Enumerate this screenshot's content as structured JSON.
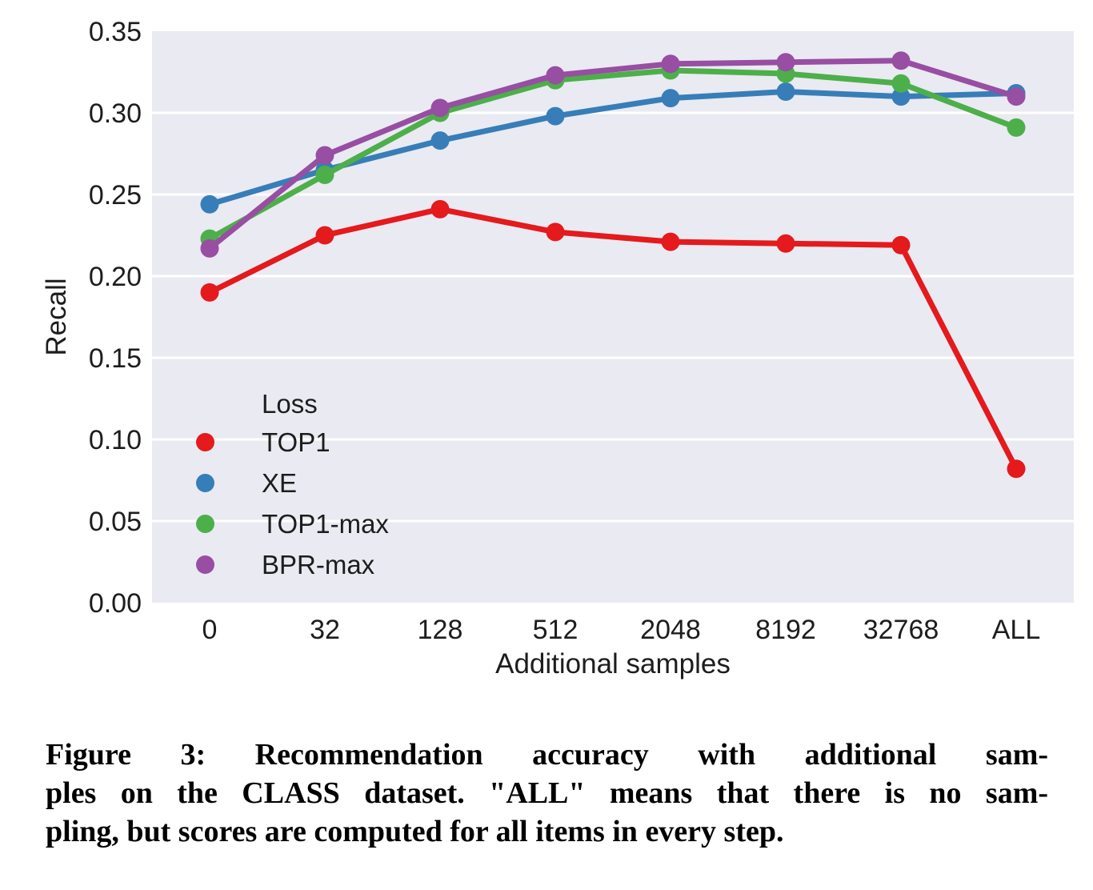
{
  "figure": {
    "caption_lines": [
      "Figure 3: Recommendation accuracy with additional sam-",
      "ples on the CLASS dataset. \"ALL\" means that there is no sam-",
      "pling, but scores are computed for all items in every step."
    ]
  },
  "chart_data": {
    "type": "line",
    "title": "",
    "xlabel": "Additional samples",
    "ylabel": "Recall",
    "legend_title": "Loss",
    "legend_position": "lower-left inside plot area",
    "grid": "horizontal white gridlines on light lavender plot background, no vertical gridlines",
    "plot_bg": "#eaeaf2",
    "gridline_color": "#ffffff",
    "text_color": "#1d1d1d",
    "categories": [
      "0",
      "32",
      "128",
      "512",
      "2048",
      "8192",
      "32768",
      "ALL"
    ],
    "ylim": [
      0.0,
      0.35
    ],
    "yticks": [
      0.0,
      0.05,
      0.1,
      0.15,
      0.2,
      0.25,
      0.3,
      0.35
    ],
    "series": [
      {
        "name": "TOP1",
        "color": "#e41a1c",
        "values": [
          0.19,
          0.225,
          0.241,
          0.227,
          0.221,
          0.22,
          0.219,
          0.082
        ]
      },
      {
        "name": "XE",
        "color": "#377eb8",
        "values": [
          0.244,
          0.265,
          0.283,
          0.298,
          0.309,
          0.313,
          0.31,
          0.312
        ]
      },
      {
        "name": "TOP1-max",
        "color": "#4daf4a",
        "values": [
          0.223,
          0.262,
          0.3,
          0.32,
          0.326,
          0.324,
          0.318,
          0.291
        ]
      },
      {
        "name": "BPR-max",
        "color": "#984ea3",
        "values": [
          0.217,
          0.274,
          0.303,
          0.323,
          0.33,
          0.331,
          0.332,
          0.31
        ]
      }
    ]
  }
}
